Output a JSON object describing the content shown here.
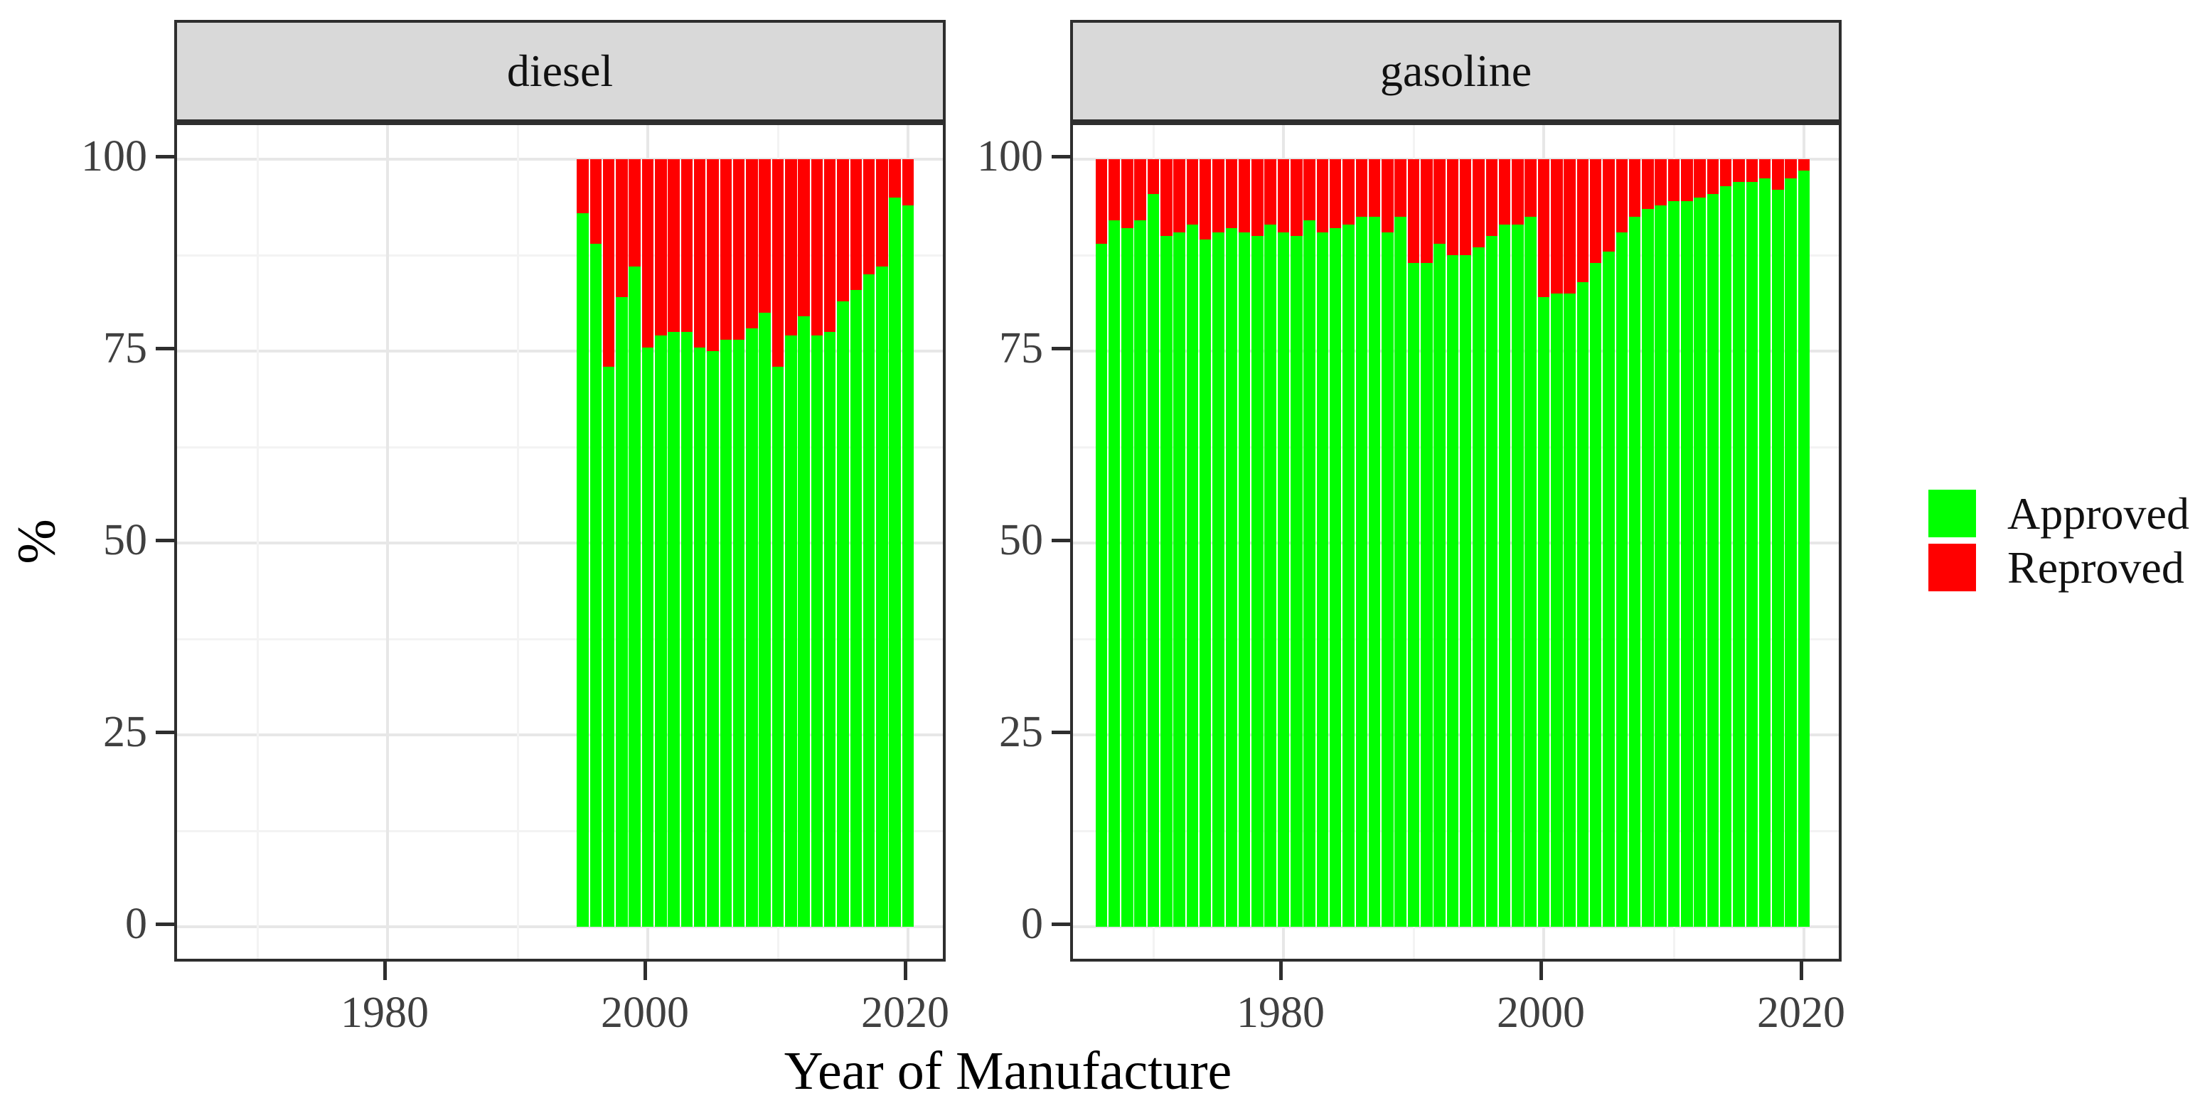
{
  "axes": {
    "x_title": "Year of Manufacture",
    "y_title": "%",
    "y_tick_values": [
      0,
      25,
      50,
      75,
      100
    ],
    "y_tick_labels": [
      "0",
      "25",
      "50",
      "75",
      "100"
    ],
    "y_minor_values": [
      12.5,
      37.5,
      62.5,
      87.5
    ],
    "x_tick_values": [
      1980,
      2000,
      2020
    ],
    "x_tick_labels": [
      "1980",
      "2000",
      "2020"
    ],
    "x_minor_values": [
      1970,
      1990,
      2010
    ]
  },
  "legend": {
    "position": "right",
    "items": [
      {
        "label": "Approved",
        "color": "#00FF00"
      },
      {
        "label": "Reproved",
        "color": "#FF0000"
      }
    ]
  },
  "style": {
    "approved_color": "#00FF00",
    "reproved_color": "#FF0000",
    "strip_bg": "#D9D9D9",
    "panel_border": "#2E2E2E",
    "grid_major": "#E7E7E7",
    "grid_minor": "#F3F3F3",
    "tick_text": "#404040"
  },
  "chart_data": {
    "type": "bar",
    "subtype": "stacked-percent",
    "title": "",
    "xlabel": "Year of Manufacture",
    "ylabel": "%",
    "ylim": [
      0,
      100
    ],
    "x_ticks": [
      1980,
      2000,
      2020
    ],
    "grid": true,
    "legend_position": "right",
    "legend_entries": [
      "Approved",
      "Reproved"
    ],
    "facets": [
      {
        "label": "diesel",
        "years": [
          1995,
          1996,
          1997,
          1998,
          1999,
          2000,
          2001,
          2002,
          2003,
          2004,
          2005,
          2006,
          2007,
          2008,
          2009,
          2010,
          2011,
          2012,
          2013,
          2014,
          2015,
          2016,
          2017,
          2018,
          2019,
          2020
        ],
        "approved_pct": [
          93,
          89,
          73,
          82,
          86,
          75.5,
          77,
          77.5,
          77.5,
          75.5,
          75,
          76.5,
          76.5,
          78,
          80,
          73,
          77,
          79.5,
          77,
          77.5,
          81.5,
          83,
          85,
          86,
          95,
          94
        ],
        "reproved_pct": [
          7,
          11,
          27,
          18,
          14,
          24.5,
          23,
          22.5,
          22.5,
          24.5,
          25,
          23.5,
          23.5,
          22,
          20,
          27,
          23,
          20.5,
          23,
          22.5,
          18.5,
          17,
          15,
          14,
          5,
          6
        ]
      },
      {
        "label": "gasoline",
        "years": [
          1966,
          1967,
          1968,
          1969,
          1970,
          1971,
          1972,
          1973,
          1974,
          1975,
          1976,
          1977,
          1978,
          1979,
          1980,
          1981,
          1982,
          1983,
          1984,
          1985,
          1986,
          1987,
          1988,
          1989,
          1990,
          1991,
          1992,
          1993,
          1994,
          1995,
          1996,
          1997,
          1998,
          1999,
          2000,
          2001,
          2002,
          2003,
          2004,
          2005,
          2006,
          2007,
          2008,
          2009,
          2010,
          2011,
          2012,
          2013,
          2014,
          2015,
          2016,
          2017,
          2018,
          2019,
          2020
        ],
        "approved_pct": [
          89,
          92,
          91,
          92,
          95.5,
          90,
          90.5,
          91.5,
          89.5,
          90.5,
          91,
          90.5,
          90,
          91.5,
          90.5,
          90,
          92,
          90.5,
          91,
          91.5,
          92.5,
          92.5,
          90.5,
          92.5,
          86.5,
          86.5,
          89,
          87.5,
          87.5,
          88.5,
          90,
          91.5,
          91.5,
          92.5,
          82,
          82.5,
          82.5,
          84,
          86.5,
          88,
          90.5,
          92.5,
          93.5,
          94,
          94.5,
          94.5,
          95,
          95.5,
          96.5,
          97,
          97,
          97.5,
          96,
          97.5,
          98.5
        ],
        "reproved_pct": [
          11,
          8,
          9,
          8,
          4.5,
          10,
          9.5,
          8.5,
          10.5,
          9.5,
          9,
          9.5,
          10,
          8.5,
          9.5,
          10,
          8,
          9.5,
          9,
          8.5,
          7.5,
          7.5,
          9.5,
          7.5,
          13.5,
          13.5,
          11,
          12.5,
          12.5,
          11.5,
          10,
          8.5,
          8.5,
          7.5,
          18,
          17.5,
          17.5,
          16,
          13.5,
          12,
          9.5,
          7.5,
          6.5,
          6,
          5.5,
          5.5,
          5,
          4.5,
          3.5,
          3,
          3,
          2.5,
          4,
          2.5,
          1.5
        ]
      }
    ]
  }
}
